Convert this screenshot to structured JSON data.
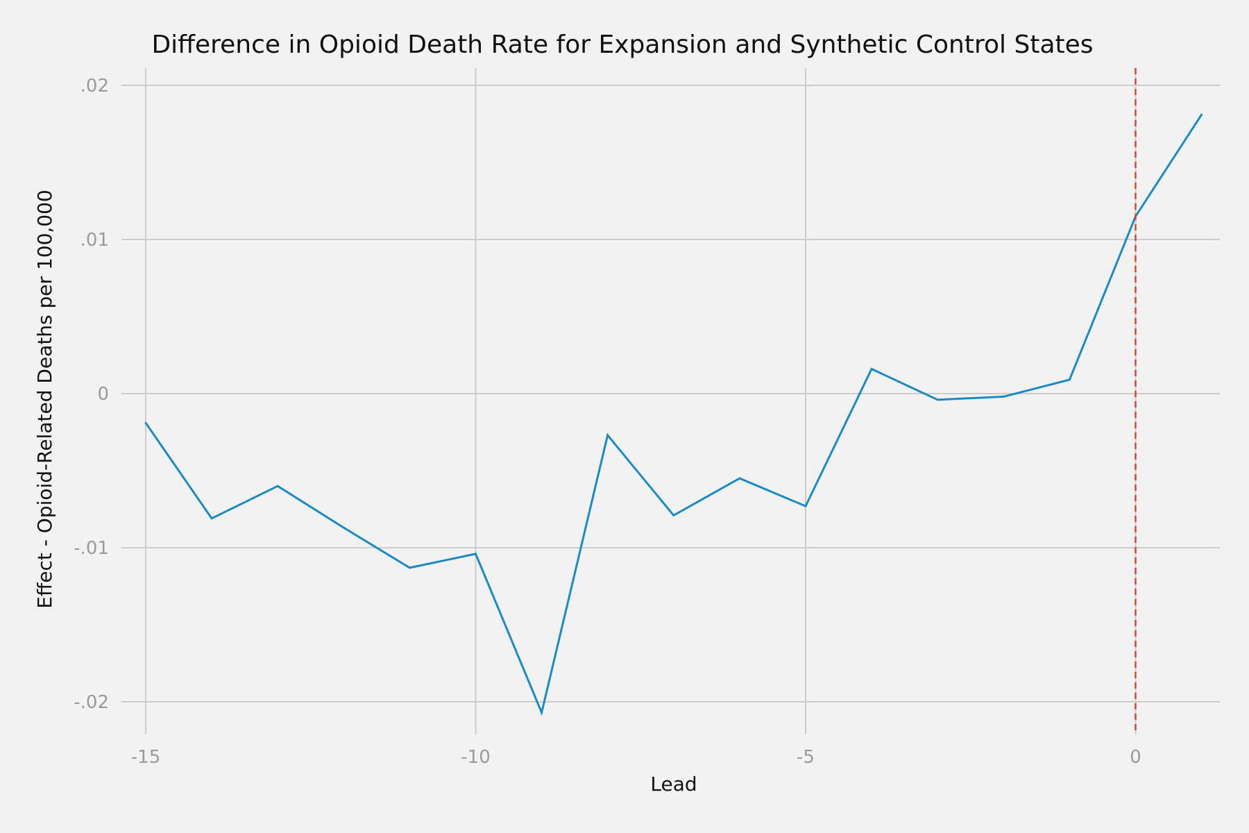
{
  "chart_data": {
    "type": "line",
    "title": "Difference in Opioid Death Rate for Expansion and Synthetic Control States",
    "xlabel": "Lead",
    "ylabel": "Effect - Opioid-Related Deaths per 100,000",
    "xlim": [
      -15,
      1
    ],
    "ylim": [
      -0.02,
      0.02
    ],
    "x_ticks": [
      -15,
      -10,
      -5,
      0
    ],
    "x_tick_labels": [
      "-15",
      "-10",
      "-5",
      "0"
    ],
    "y_ticks": [
      0.02,
      0.01,
      0,
      -0.01,
      -0.02
    ],
    "y_tick_labels": [
      ".02",
      ".01",
      "0",
      "-.01",
      "-.02"
    ],
    "grid": true,
    "series": [
      {
        "x": [
          -15,
          -14,
          -13,
          -12,
          -11,
          -10,
          -9,
          -8,
          -7,
          -6,
          -5,
          -4,
          -3,
          -2,
          -1,
          0,
          1
        ],
        "y": [
          -0.0019,
          -0.0081,
          -0.006,
          -0.0087,
          -0.0113,
          -0.0104,
          -0.0207,
          -0.0027,
          -0.0079,
          -0.0055,
          -0.0073,
          0.0016,
          -0.0004,
          -0.0002,
          0.0009,
          0.0115,
          0.0181
        ]
      }
    ],
    "reference_line": {
      "x": 0,
      "style": "dashed"
    },
    "colors": {
      "background": "#f2f2f2",
      "grid": "#cccccc",
      "series": "#1a8ac6",
      "reference_line": "#d9442a",
      "tick_text": "#9a9a9a",
      "title_text": "#111111"
    }
  }
}
